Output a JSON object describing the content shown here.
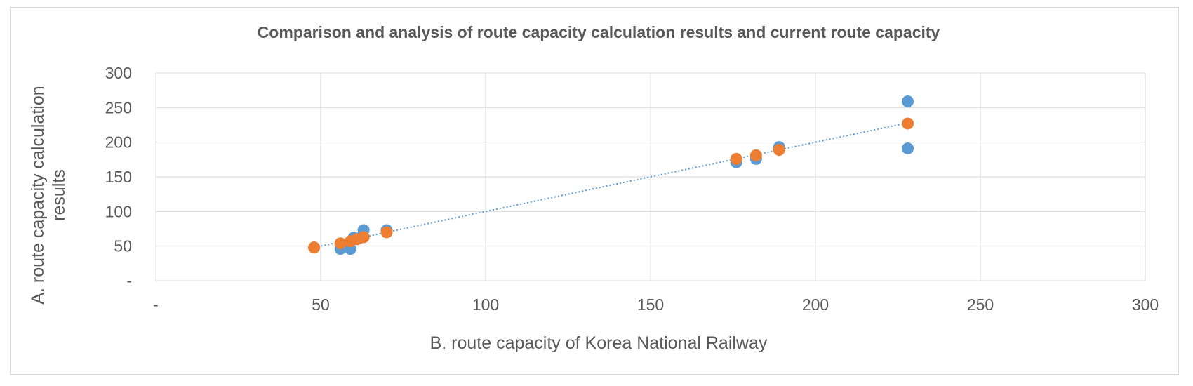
{
  "chart_data": {
    "type": "scatter",
    "title": "Comparison and analysis of route capacity calculation results and current route capacity",
    "xlabel": "B. route capacity of Korea National Railway",
    "ylabel": [
      "A. route capacity calculation",
      "results"
    ],
    "xlim": [
      0,
      300
    ],
    "ylim": [
      0,
      300
    ],
    "x_ticks": [
      {
        "value": 0,
        "label": "-"
      },
      {
        "value": 50,
        "label": "50"
      },
      {
        "value": 100,
        "label": "100"
      },
      {
        "value": 150,
        "label": "150"
      },
      {
        "value": 200,
        "label": "200"
      },
      {
        "value": 250,
        "label": "250"
      },
      {
        "value": 300,
        "label": "300"
      }
    ],
    "y_ticks": [
      {
        "value": 0,
        "label": "-"
      },
      {
        "value": 50,
        "label": "50"
      },
      {
        "value": 100,
        "label": "100"
      },
      {
        "value": 150,
        "label": "150"
      },
      {
        "value": 200,
        "label": "200"
      },
      {
        "value": 250,
        "label": "250"
      },
      {
        "value": 300,
        "label": "300"
      }
    ],
    "grid": true,
    "series": [
      {
        "color": "#5b9bd5",
        "points": [
          [
            48,
            48
          ],
          [
            56,
            46
          ],
          [
            59,
            46
          ],
          [
            60,
            62
          ],
          [
            61,
            60
          ],
          [
            62,
            62
          ],
          [
            63,
            73
          ],
          [
            70,
            73
          ],
          [
            176,
            171
          ],
          [
            182,
            176
          ],
          [
            189,
            193
          ],
          [
            228,
            259
          ],
          [
            228,
            191
          ]
        ]
      },
      {
        "color": "#ed7d31",
        "points": [
          [
            48,
            48
          ],
          [
            56,
            54
          ],
          [
            59,
            57
          ],
          [
            61,
            60
          ],
          [
            63,
            63
          ],
          [
            70,
            70
          ],
          [
            176,
            176
          ],
          [
            182,
            181
          ],
          [
            189,
            189
          ],
          [
            228,
            227
          ]
        ]
      }
    ],
    "trendline": {
      "from": [
        48,
        48
      ],
      "to": [
        228,
        228
      ],
      "color": "#5b9bd5",
      "style": "dotted"
    }
  }
}
